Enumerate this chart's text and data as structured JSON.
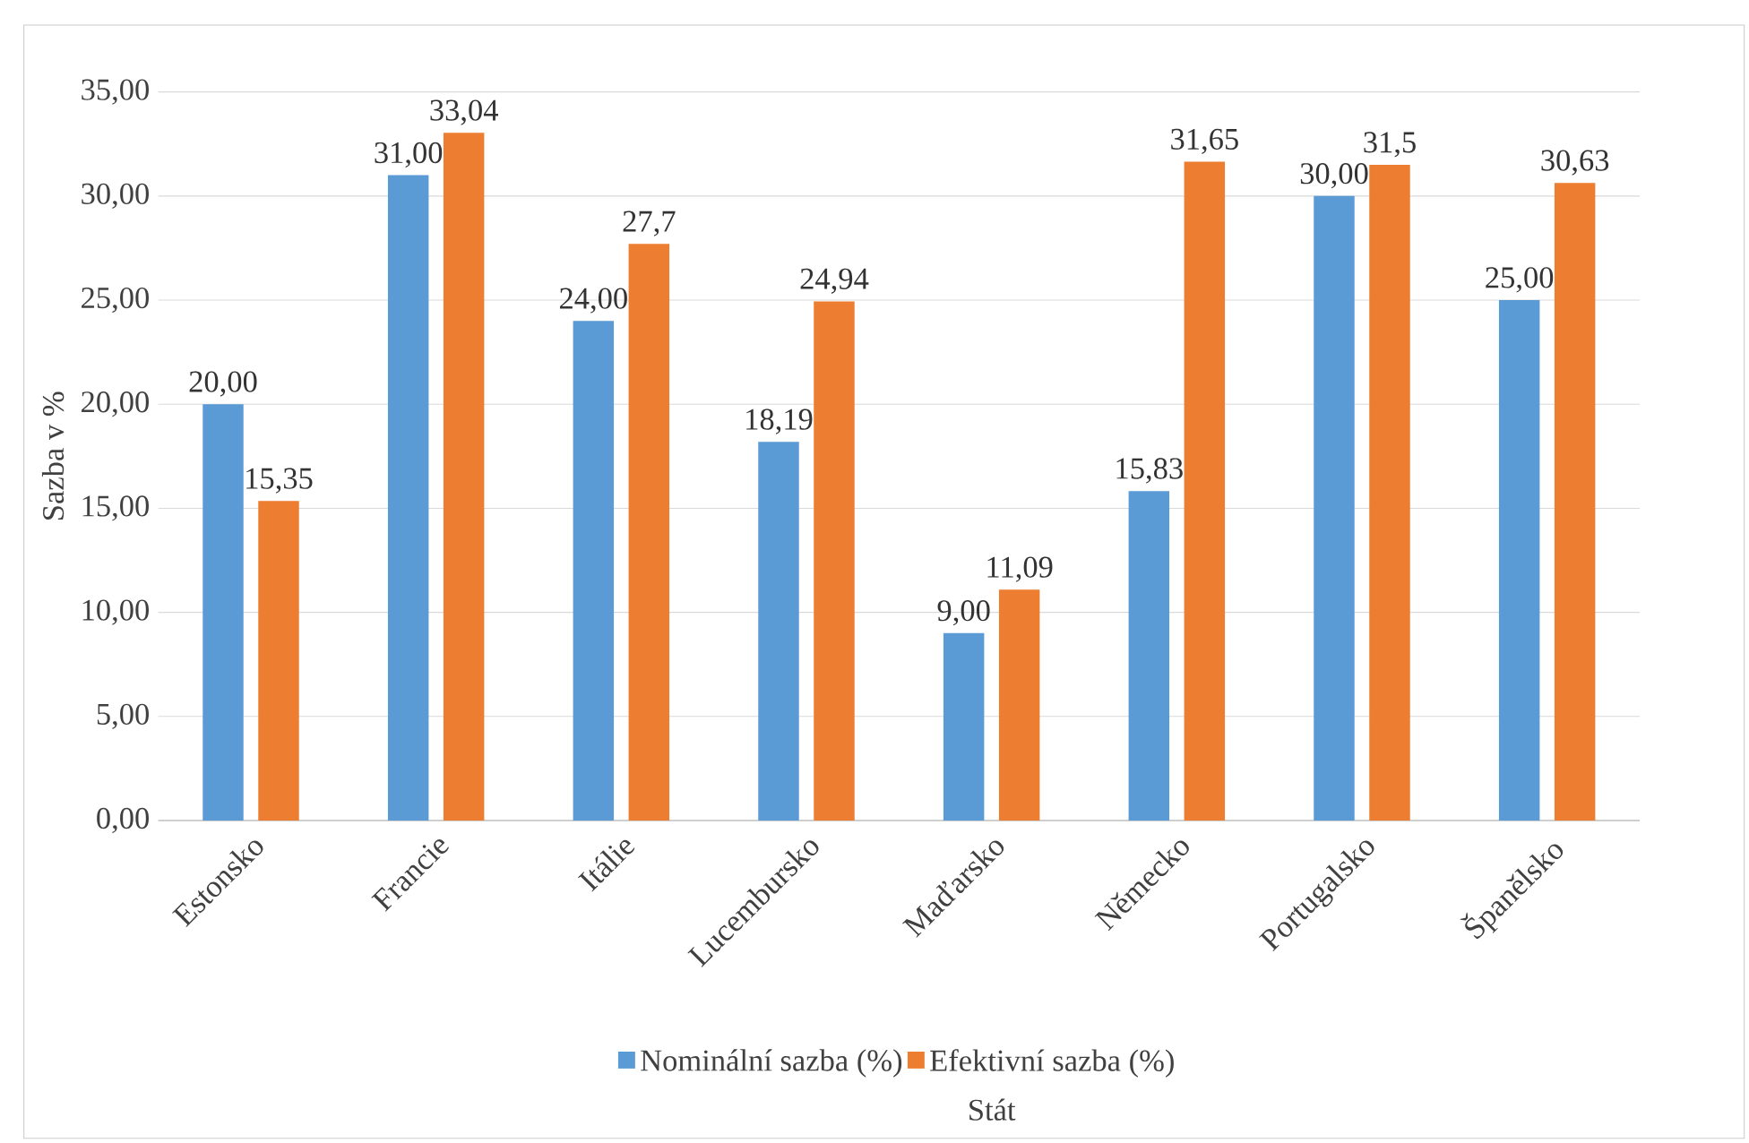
{
  "chart_data": {
    "type": "bar",
    "ylabel": "Sazba v %",
    "xlabel": "Stát",
    "categories": [
      "Estonsko",
      "Francie",
      "Itálie",
      "Lucembursko",
      "Maďarsko",
      "Německo",
      "Portugalsko",
      "Španělsko"
    ],
    "series": [
      {
        "name": "Nominální sazba (%)",
        "color": "#5b9bd5",
        "values": [
          20.0,
          31.0,
          24.0,
          18.19,
          9.0,
          15.83,
          30.0,
          25.0
        ],
        "value_labels": [
          "20,00",
          "31,00",
          "24,00",
          "18,19",
          "9,00",
          "15,83",
          "30,00",
          "25,00"
        ]
      },
      {
        "name": "Efektivní sazba (%)",
        "color": "#ed7d31",
        "values": [
          15.35,
          33.04,
          27.7,
          24.94,
          11.09,
          31.65,
          31.5,
          30.63
        ],
        "value_labels": [
          "15,35",
          "33,04",
          "27,7",
          "24,94",
          "11,09",
          "31,65",
          "31,5",
          "30,63"
        ]
      }
    ],
    "ylim": [
      0,
      35
    ],
    "yticks": [
      {
        "value": 0,
        "label": "0,00"
      },
      {
        "value": 5,
        "label": "5,00"
      },
      {
        "value": 10,
        "label": "10,00"
      },
      {
        "value": 15,
        "label": "15,00"
      },
      {
        "value": 20,
        "label": "20,00"
      },
      {
        "value": 25,
        "label": "25,00"
      },
      {
        "value": 30,
        "label": "30,00"
      },
      {
        "value": 35,
        "label": "35,00"
      }
    ],
    "grid": "y",
    "legend": "bottom"
  }
}
